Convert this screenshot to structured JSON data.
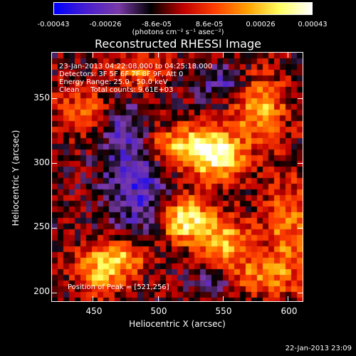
{
  "colorbar": {
    "ticks": [
      "-0.00043",
      "-0.00026",
      "-8.6e-05",
      "8.6e-05",
      "0.00026",
      "0.00043"
    ],
    "units": "(photons cm⁻² s⁻¹ asec⁻²)"
  },
  "title": "Reconstructed RHESSI Image",
  "info": {
    "time_range": "23-Jan-2013 04:22:08.000 to 04:25:18.000",
    "detectors": "Detectors: 3F 5F 6F 7F 8F 9F, Att 0",
    "energy": "Energy Range: 25.0 - 50.0 keV",
    "clean": "Clean     Total counts: 9.61E+03",
    "peak": "Position of Peak = [521,256]"
  },
  "axes": {
    "xlabel": "Heliocentric X (arcsec)",
    "ylabel": "Heliocentric Y (arcsec)",
    "xticks": [
      "450",
      "500",
      "550",
      "600"
    ],
    "yticks": [
      "200",
      "250",
      "300",
      "350"
    ]
  },
  "timestamp": "22-Jan-2013 23:09",
  "chart_data": {
    "type": "heatmap",
    "title": "Reconstructed RHESSI Image",
    "xlabel": "Heliocentric X (arcsec)",
    "ylabel": "Heliocentric Y (arcsec)",
    "xlim": [
      418,
      612
    ],
    "ylim": [
      193,
      386
    ],
    "color_scale": {
      "min": -0.00043,
      "max": 0.00043,
      "colors": [
        "#0000ff",
        "#4a1fd0",
        "#7a3aa8",
        "#000000",
        "#c00000",
        "#ff4000",
        "#ffa000",
        "#ffff60",
        "#ffffff"
      ]
    },
    "peak": [
      521,
      256
    ],
    "sources": [
      {
        "x": 521,
        "y": 256,
        "amp": 1.0,
        "sx": 14,
        "sy": 12
      },
      {
        "x": 520,
        "y": 312,
        "amp": 0.85,
        "sx": 22,
        "sy": 12
      },
      {
        "x": 548,
        "y": 305,
        "amp": 0.8,
        "sx": 14,
        "sy": 14
      },
      {
        "x": 578,
        "y": 345,
        "amp": 0.75,
        "sx": 14,
        "sy": 18
      },
      {
        "x": 552,
        "y": 238,
        "amp": 0.7,
        "sx": 14,
        "sy": 14
      },
      {
        "x": 470,
        "y": 228,
        "amp": 0.7,
        "sx": 16,
        "sy": 10
      },
      {
        "x": 455,
        "y": 212,
        "amp": 0.55,
        "sx": 14,
        "sy": 12
      },
      {
        "x": 600,
        "y": 250,
        "amp": 0.55,
        "sx": 12,
        "sy": 30
      },
      {
        "x": 445,
        "y": 340,
        "amp": 0.45,
        "sx": 20,
        "sy": 14
      },
      {
        "x": 488,
        "y": 372,
        "amp": 0.5,
        "sx": 14,
        "sy": 10
      },
      {
        "x": 575,
        "y": 212,
        "amp": 0.45,
        "sx": 22,
        "sy": 10
      },
      {
        "x": 485,
        "y": 285,
        "amp": -0.55,
        "sx": 18,
        "sy": 30
      },
      {
        "x": 470,
        "y": 330,
        "amp": -0.45,
        "sx": 12,
        "sy": 16
      },
      {
        "x": 552,
        "y": 362,
        "amp": -0.4,
        "sx": 18,
        "sy": 10
      },
      {
        "x": 545,
        "y": 210,
        "amp": -0.45,
        "sx": 12,
        "sy": 10
      }
    ]
  }
}
